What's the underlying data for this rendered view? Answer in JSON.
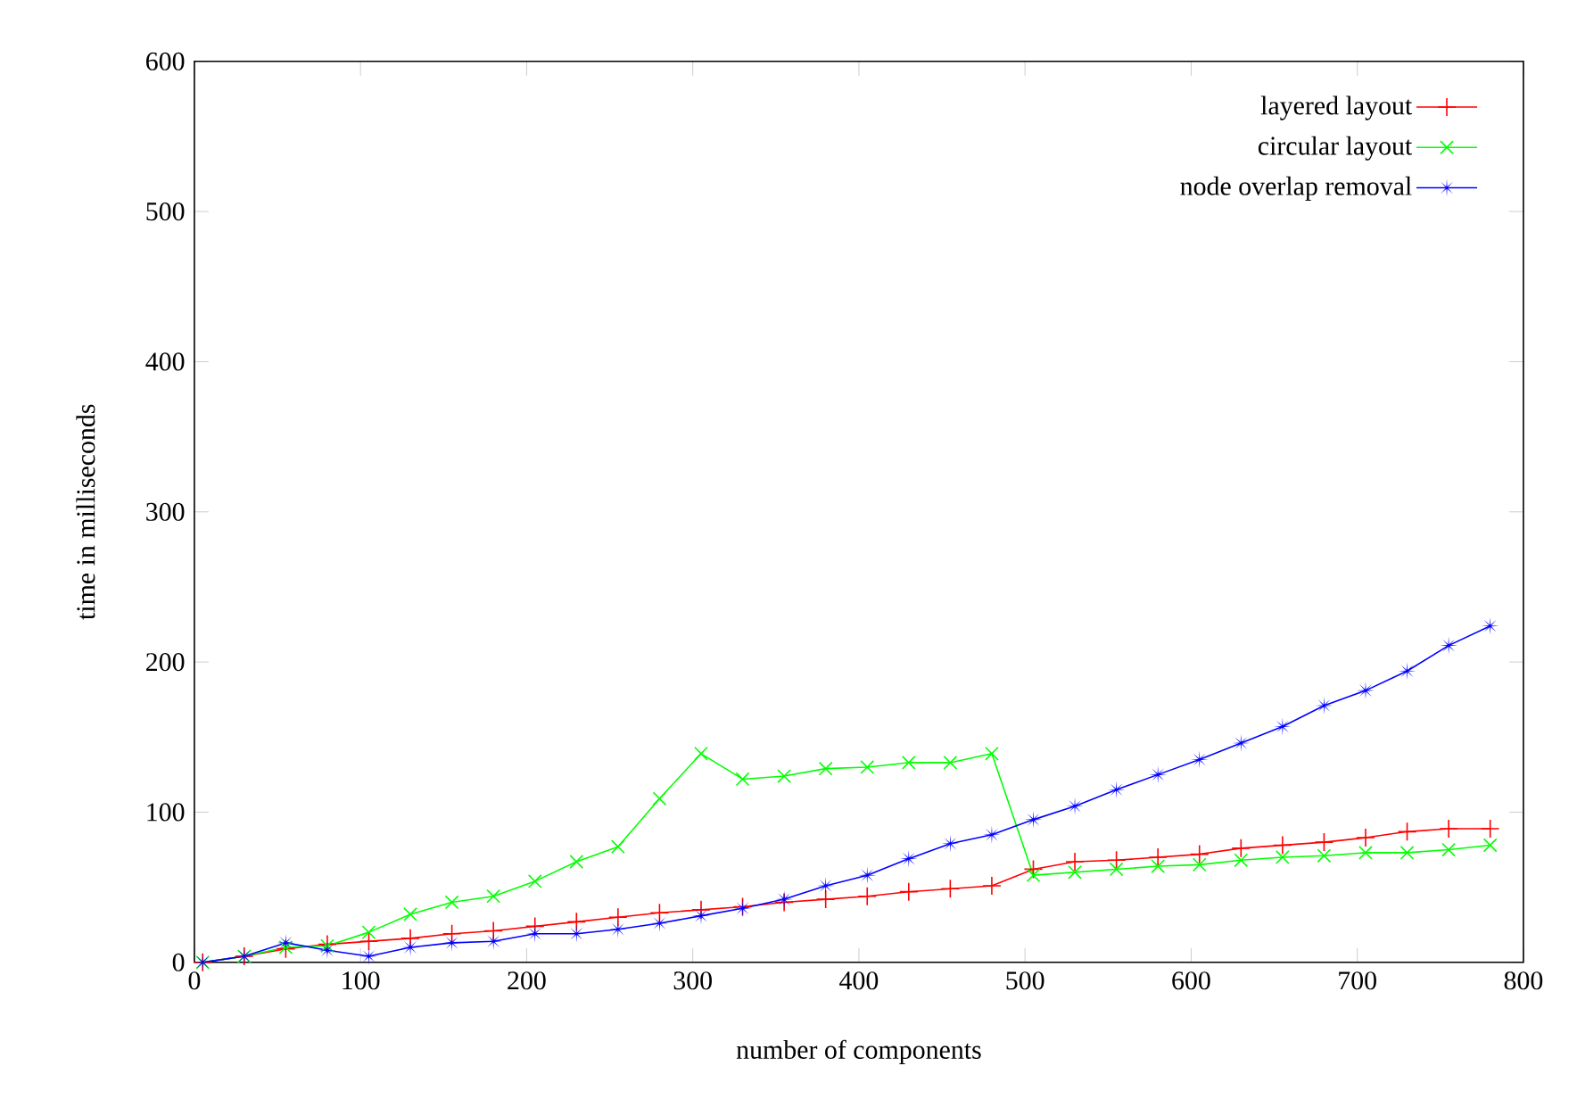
{
  "chart_data": {
    "type": "line",
    "xlabel": "number of components",
    "ylabel": "time in milliseconds",
    "x": [
      5,
      30,
      55,
      80,
      105,
      130,
      155,
      180,
      205,
      230,
      255,
      280,
      305,
      330,
      355,
      380,
      405,
      430,
      455,
      480,
      505,
      530,
      555,
      580,
      605,
      630,
      655,
      680,
      705,
      730,
      755,
      780
    ],
    "series": [
      {
        "name": "layered layout",
        "color": "#ff0000",
        "marker": "plus",
        "values": [
          0,
          4,
          9,
          12,
          14,
          16,
          19,
          21,
          24,
          27,
          30,
          33,
          35,
          37,
          40,
          42,
          44,
          47,
          49,
          51,
          62,
          67,
          68,
          70,
          72,
          76,
          78,
          80,
          83,
          87,
          89,
          89
        ]
      },
      {
        "name": "circular layout",
        "color": "#00ff00",
        "marker": "cross",
        "values": [
          0,
          4,
          10,
          11,
          20,
          32,
          40,
          44,
          54,
          67,
          77,
          109,
          139,
          122,
          124,
          129,
          130,
          133,
          133,
          139,
          58,
          60,
          62,
          64,
          65,
          68,
          70,
          71,
          73,
          73,
          75,
          78
        ]
      },
      {
        "name": "node overlap removal",
        "color": "#0000ff",
        "marker": "star",
        "values": [
          0,
          4,
          13,
          8,
          4,
          10,
          13,
          14,
          19,
          19,
          22,
          26,
          31,
          36,
          42,
          51,
          58,
          69,
          79,
          85,
          95,
          104,
          115,
          125,
          135,
          146,
          157,
          171,
          181,
          194,
          211,
          224
        ]
      }
    ],
    "xlim": [
      0,
      800
    ],
    "ylim": [
      0,
      600
    ],
    "xticks": [
      0,
      100,
      200,
      300,
      400,
      500,
      600,
      700,
      800
    ],
    "yticks": [
      0,
      100,
      200,
      300,
      400,
      500,
      600
    ],
    "legend": "top right",
    "grid": false,
    "line_style": "solid"
  }
}
